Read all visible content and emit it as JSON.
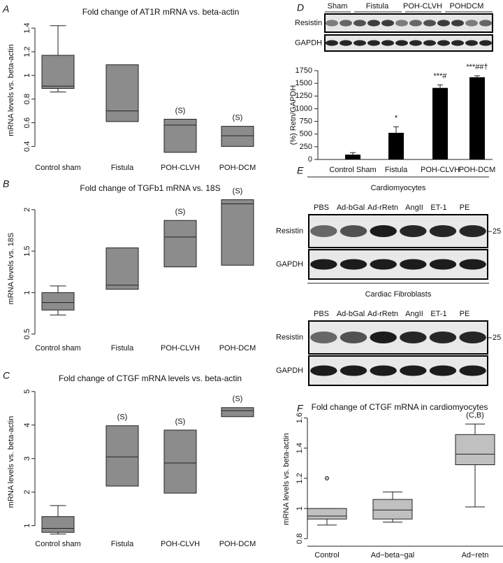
{
  "chart_data": [
    {
      "type": "box",
      "panel": "A",
      "title": "Fold change of AT1R mRNA vs. beta-actin",
      "ylabel": "mRNA levels vs. beta-actin",
      "categories": [
        "Control sham",
        "Fistula",
        "POH-CLVH",
        "POH-DCM"
      ],
      "boxes": [
        {
          "whisker_low": 0.86,
          "q1": 0.89,
          "median": 0.91,
          "q3": 1.17,
          "whisker_high": 1.42
        },
        {
          "q1": 0.61,
          "median": 0.7,
          "q3": 1.09
        },
        {
          "q1": 0.35,
          "median": 0.58,
          "q3": 0.63
        },
        {
          "q1": 0.4,
          "median": 0.49,
          "q3": 0.57
        }
      ],
      "annotations": [
        null,
        null,
        "(S)",
        "(S)"
      ],
      "ylim": [
        0.29,
        1.46
      ],
      "yticks": [
        0.4,
        0.6,
        0.8,
        1,
        1.2,
        1.4
      ],
      "color": "#8c8c8c"
    },
    {
      "type": "box",
      "panel": "B",
      "title": "Fold change of TGFb1 mRNA vs. 18S",
      "ylabel": "mRNA levels vs. 18S",
      "categories": [
        "Control sham",
        "Fistula",
        "POH-CLVH",
        "POH-DCM"
      ],
      "boxes": [
        {
          "whisker_low": 0.73,
          "q1": 0.79,
          "median": 0.88,
          "q3": 1.0,
          "whisker_high": 1.08
        },
        {
          "q1": 1.04,
          "median": 1.09,
          "q3": 1.54
        },
        {
          "q1": 1.31,
          "median": 1.67,
          "q3": 1.87
        },
        {
          "q1": 1.33,
          "median": 2.07,
          "q3": 2.12
        }
      ],
      "annotations": [
        null,
        null,
        "(S)",
        "(S)"
      ],
      "ylim": [
        0.43,
        2.15
      ],
      "yticks": [
        0.5,
        1,
        1.5,
        2
      ],
      "color": "#8c8c8c"
    },
    {
      "type": "box",
      "panel": "C",
      "title": "Fold change of CTGF mRNA levels vs. beta-actin",
      "ylabel": "mRNA levels vs. beta-actin",
      "categories": [
        "Control sham",
        "Fistula",
        "POH-CLVH",
        "POH-DCM"
      ],
      "boxes": [
        {
          "whisker_low": 0.75,
          "q1": 0.8,
          "median": 0.92,
          "q3": 1.27,
          "whisker_high": 1.6
        },
        {
          "q1": 2.18,
          "median": 3.05,
          "q3": 3.98
        },
        {
          "q1": 1.97,
          "median": 2.87,
          "q3": 3.85
        },
        {
          "q1": 4.25,
          "median": 4.43,
          "q3": 4.52
        }
      ],
      "annotations": [
        null,
        "(S)",
        "(S)",
        "(S)"
      ],
      "ylim": [
        0.7,
        5.1
      ],
      "yticks": [
        1,
        2,
        3,
        4,
        5
      ],
      "color": "#8c8c8c"
    },
    {
      "type": "bar",
      "panel": "D",
      "ylabel": "(%) Retn/GAPDH",
      "categories": [
        "Control Sham",
        "Fistula",
        "POH-CLVH",
        "POH-DCM"
      ],
      "values": [
        95,
        525,
        1410,
        1620
      ],
      "errors": [
        40,
        120,
        60,
        30
      ],
      "annotations": [
        null,
        "*",
        "***#",
        "***##†"
      ],
      "ylim": [
        0,
        1750
      ],
      "yticks": [
        0,
        250,
        500,
        750,
        1000,
        1250,
        1500,
        1750
      ],
      "color": "#000000"
    },
    {
      "type": "box",
      "panel": "F",
      "title": "Fold change of CTGF mRNA in cardiomyocytes",
      "ylabel": "mRNA levels vs. beta-actin",
      "categories": [
        "Control",
        "Ad−beta−gal",
        "Ad−retn"
      ],
      "boxes": [
        {
          "whisker_low": 0.89,
          "q1": 0.93,
          "median": 0.95,
          "q3": 1.0,
          "whisker_high": 1.0,
          "outliers": [
            1.2
          ]
        },
        {
          "whisker_low": 0.91,
          "q1": 0.93,
          "median": 0.99,
          "q3": 1.06,
          "whisker_high": 1.11
        },
        {
          "whisker_low": 1.01,
          "q1": 1.29,
          "median": 1.36,
          "q3": 1.49,
          "whisker_high": 1.56
        }
      ],
      "annotations": [
        null,
        null,
        "(C,B)"
      ],
      "ylim": [
        0.75,
        1.64
      ],
      "yticks": [
        0.8,
        1,
        1.2,
        1.4,
        1.6
      ],
      "color": "#c0c0c0"
    }
  ],
  "blots": [
    {
      "columns": [
        "Sham",
        "Fistula",
        "POH-CLVH",
        "POHDCM"
      ],
      "rows": [
        "Resistin",
        "GAPDH"
      ]
    },
    {
      "panel": "E",
      "sections": [
        {
          "title": "Cardiomyocytes",
          "lanes": [
            "PBS",
            "Ad-bGal",
            "Ad-rRetn",
            "AngII",
            "ET-1",
            "PE"
          ],
          "rows": [
            "Resistin",
            "GAPDH"
          ],
          "marker": 25
        },
        {
          "title": "Cardiac Fibroblasts",
          "lanes": [
            "PBS",
            "Ad-bGal",
            "Ad-rRetn",
            "AngII",
            "ET-1",
            "PE"
          ],
          "rows": [
            "Resistin",
            "GAPDH"
          ],
          "marker": 25
        }
      ]
    }
  ]
}
